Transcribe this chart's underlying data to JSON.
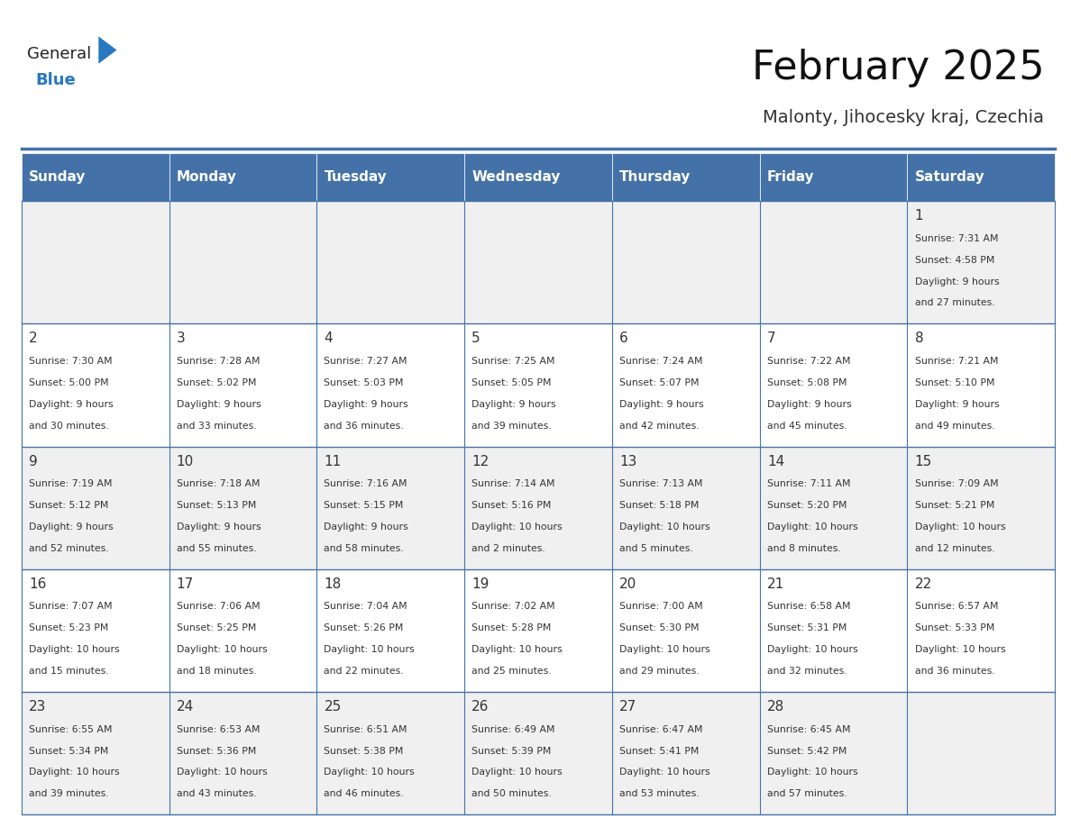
{
  "title": "February 2025",
  "subtitle": "Malonty, Jihocesky kraj, Czechia",
  "header_color": "#4472a8",
  "header_text_color": "#ffffff",
  "grid_line_color": "#4472a8",
  "day_names": [
    "Sunday",
    "Monday",
    "Tuesday",
    "Wednesday",
    "Thursday",
    "Friday",
    "Saturday"
  ],
  "bg_color": "#ffffff",
  "alt_row_color": "#f0f0f0",
  "cell_text_color": "#333333",
  "day_num_color": "#333333",
  "logo_general_color": "#222222",
  "logo_blue_color": "#2878c0",
  "days": [
    {
      "date": 1,
      "col": 6,
      "row": 0,
      "sunrise": "7:31 AM",
      "sunset": "4:58 PM",
      "daylight": "9 hours and 27 minutes."
    },
    {
      "date": 2,
      "col": 0,
      "row": 1,
      "sunrise": "7:30 AM",
      "sunset": "5:00 PM",
      "daylight": "9 hours and 30 minutes."
    },
    {
      "date": 3,
      "col": 1,
      "row": 1,
      "sunrise": "7:28 AM",
      "sunset": "5:02 PM",
      "daylight": "9 hours and 33 minutes."
    },
    {
      "date": 4,
      "col": 2,
      "row": 1,
      "sunrise": "7:27 AM",
      "sunset": "5:03 PM",
      "daylight": "9 hours and 36 minutes."
    },
    {
      "date": 5,
      "col": 3,
      "row": 1,
      "sunrise": "7:25 AM",
      "sunset": "5:05 PM",
      "daylight": "9 hours and 39 minutes."
    },
    {
      "date": 6,
      "col": 4,
      "row": 1,
      "sunrise": "7:24 AM",
      "sunset": "5:07 PM",
      "daylight": "9 hours and 42 minutes."
    },
    {
      "date": 7,
      "col": 5,
      "row": 1,
      "sunrise": "7:22 AM",
      "sunset": "5:08 PM",
      "daylight": "9 hours and 45 minutes."
    },
    {
      "date": 8,
      "col": 6,
      "row": 1,
      "sunrise": "7:21 AM",
      "sunset": "5:10 PM",
      "daylight": "9 hours and 49 minutes."
    },
    {
      "date": 9,
      "col": 0,
      "row": 2,
      "sunrise": "7:19 AM",
      "sunset": "5:12 PM",
      "daylight": "9 hours and 52 minutes."
    },
    {
      "date": 10,
      "col": 1,
      "row": 2,
      "sunrise": "7:18 AM",
      "sunset": "5:13 PM",
      "daylight": "9 hours and 55 minutes."
    },
    {
      "date": 11,
      "col": 2,
      "row": 2,
      "sunrise": "7:16 AM",
      "sunset": "5:15 PM",
      "daylight": "9 hours and 58 minutes."
    },
    {
      "date": 12,
      "col": 3,
      "row": 2,
      "sunrise": "7:14 AM",
      "sunset": "5:16 PM",
      "daylight": "10 hours and 2 minutes."
    },
    {
      "date": 13,
      "col": 4,
      "row": 2,
      "sunrise": "7:13 AM",
      "sunset": "5:18 PM",
      "daylight": "10 hours and 5 minutes."
    },
    {
      "date": 14,
      "col": 5,
      "row": 2,
      "sunrise": "7:11 AM",
      "sunset": "5:20 PM",
      "daylight": "10 hours and 8 minutes."
    },
    {
      "date": 15,
      "col": 6,
      "row": 2,
      "sunrise": "7:09 AM",
      "sunset": "5:21 PM",
      "daylight": "10 hours and 12 minutes."
    },
    {
      "date": 16,
      "col": 0,
      "row": 3,
      "sunrise": "7:07 AM",
      "sunset": "5:23 PM",
      "daylight": "10 hours and 15 minutes."
    },
    {
      "date": 17,
      "col": 1,
      "row": 3,
      "sunrise": "7:06 AM",
      "sunset": "5:25 PM",
      "daylight": "10 hours and 18 minutes."
    },
    {
      "date": 18,
      "col": 2,
      "row": 3,
      "sunrise": "7:04 AM",
      "sunset": "5:26 PM",
      "daylight": "10 hours and 22 minutes."
    },
    {
      "date": 19,
      "col": 3,
      "row": 3,
      "sunrise": "7:02 AM",
      "sunset": "5:28 PM",
      "daylight": "10 hours and 25 minutes."
    },
    {
      "date": 20,
      "col": 4,
      "row": 3,
      "sunrise": "7:00 AM",
      "sunset": "5:30 PM",
      "daylight": "10 hours and 29 minutes."
    },
    {
      "date": 21,
      "col": 5,
      "row": 3,
      "sunrise": "6:58 AM",
      "sunset": "5:31 PM",
      "daylight": "10 hours and 32 minutes."
    },
    {
      "date": 22,
      "col": 6,
      "row": 3,
      "sunrise": "6:57 AM",
      "sunset": "5:33 PM",
      "daylight": "10 hours and 36 minutes."
    },
    {
      "date": 23,
      "col": 0,
      "row": 4,
      "sunrise": "6:55 AM",
      "sunset": "5:34 PM",
      "daylight": "10 hours and 39 minutes."
    },
    {
      "date": 24,
      "col": 1,
      "row": 4,
      "sunrise": "6:53 AM",
      "sunset": "5:36 PM",
      "daylight": "10 hours and 43 minutes."
    },
    {
      "date": 25,
      "col": 2,
      "row": 4,
      "sunrise": "6:51 AM",
      "sunset": "5:38 PM",
      "daylight": "10 hours and 46 minutes."
    },
    {
      "date": 26,
      "col": 3,
      "row": 4,
      "sunrise": "6:49 AM",
      "sunset": "5:39 PM",
      "daylight": "10 hours and 50 minutes."
    },
    {
      "date": 27,
      "col": 4,
      "row": 4,
      "sunrise": "6:47 AM",
      "sunset": "5:41 PM",
      "daylight": "10 hours and 53 minutes."
    },
    {
      "date": 28,
      "col": 5,
      "row": 4,
      "sunrise": "6:45 AM",
      "sunset": "5:42 PM",
      "daylight": "10 hours and 57 minutes."
    }
  ]
}
